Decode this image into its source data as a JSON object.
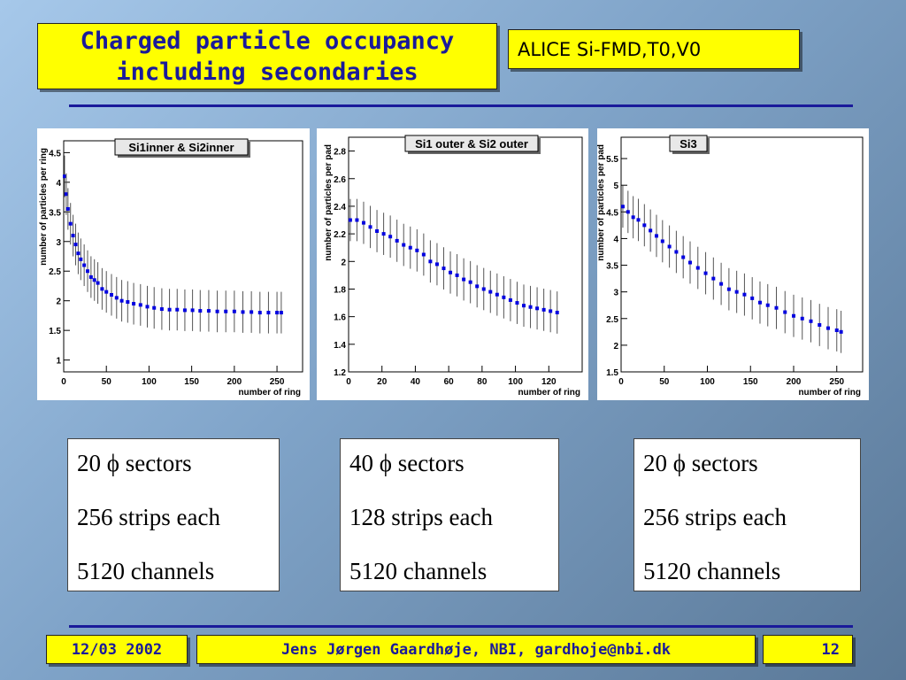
{
  "slide": {
    "title_line1": "Charged particle occupancy",
    "title_line2": "including secondaries",
    "subtitle": "ALICE Si-FMD,T0,V0"
  },
  "info_boxes": [
    {
      "line1": "20 ϕ sectors",
      "line2": "256 strips each",
      "line3": "5120 channels"
    },
    {
      "line1": "40 ϕ sectors",
      "line2": "128 strips each",
      "line3": "5120 channels"
    },
    {
      "line1": "20 ϕ sectors",
      "line2": "256 strips each",
      "line3": "5120 channels"
    }
  ],
  "footer": {
    "date": "12/03 2002",
    "author": "Jens Jørgen Gaardhøje, NBI, gardhoje@nbi.dk",
    "page": "12"
  },
  "colors": {
    "title_text": "#1a1a9a",
    "box_fill": "#ffff00",
    "marker": "#0000e0",
    "error_bar": "#555555"
  },
  "chart_data": [
    {
      "type": "scatter",
      "title": "Si1inner & Si2inner",
      "xlabel": "number of ring",
      "ylabel": "number of particles per ring",
      "xlim": [
        0,
        280
      ],
      "ylim": [
        0.8,
        4.7
      ],
      "xticks": [
        0,
        50,
        100,
        150,
        200,
        250
      ],
      "yticks": [
        1,
        1.5,
        2,
        2.5,
        3,
        3.5,
        4,
        4.5
      ],
      "error_bars": true,
      "series": [
        {
          "x": [
            1,
            3,
            5,
            8,
            11,
            14,
            17,
            20,
            24,
            28,
            32,
            36,
            40,
            45,
            50,
            56,
            62,
            68,
            75,
            82,
            90,
            98,
            106,
            115,
            124,
            133,
            142,
            151,
            160,
            170,
            180,
            190,
            200,
            210,
            220,
            230,
            240,
            250,
            255
          ],
          "y": [
            4.1,
            3.8,
            3.55,
            3.3,
            3.1,
            2.95,
            2.8,
            2.7,
            2.6,
            2.5,
            2.4,
            2.35,
            2.3,
            2.2,
            2.15,
            2.1,
            2.05,
            2.0,
            1.98,
            1.95,
            1.93,
            1.9,
            1.88,
            1.86,
            1.85,
            1.85,
            1.84,
            1.84,
            1.83,
            1.83,
            1.82,
            1.82,
            1.82,
            1.81,
            1.81,
            1.8,
            1.8,
            1.8,
            1.8
          ]
        }
      ]
    },
    {
      "type": "scatter",
      "title": "Si1 outer & Si2 outer",
      "xlabel": "number of ring",
      "ylabel": "number of particles per pad",
      "xlim": [
        0,
        140
      ],
      "ylim": [
        1.2,
        2.9
      ],
      "xticks": [
        0,
        20,
        40,
        60,
        80,
        100,
        120
      ],
      "yticks": [
        1.2,
        1.4,
        1.6,
        1.8,
        2,
        2.2,
        2.4,
        2.6,
        2.8
      ],
      "error_bars": true,
      "series": [
        {
          "x": [
            1,
            5,
            9,
            13,
            17,
            21,
            25,
            29,
            33,
            37,
            41,
            45,
            49,
            53,
            57,
            61,
            65,
            69,
            73,
            77,
            81,
            85,
            89,
            93,
            97,
            101,
            105,
            109,
            113,
            117,
            121,
            125
          ],
          "y": [
            2.3,
            2.3,
            2.28,
            2.25,
            2.22,
            2.2,
            2.18,
            2.15,
            2.12,
            2.1,
            2.08,
            2.05,
            2.0,
            1.98,
            1.95,
            1.92,
            1.9,
            1.87,
            1.85,
            1.82,
            1.8,
            1.78,
            1.76,
            1.74,
            1.72,
            1.7,
            1.68,
            1.67,
            1.66,
            1.65,
            1.64,
            1.63
          ]
        }
      ]
    },
    {
      "type": "scatter",
      "title": "Si3",
      "xlabel": "number of ring",
      "ylabel": "number of particles per pad",
      "xlim": [
        0,
        280
      ],
      "ylim": [
        1.5,
        5.9
      ],
      "xticks": [
        0,
        50,
        100,
        150,
        200,
        250
      ],
      "yticks": [
        1.5,
        2,
        2.5,
        3,
        3.5,
        4,
        4.5,
        5,
        5.5
      ],
      "error_bars": true,
      "series": [
        {
          "x": [
            2,
            8,
            14,
            20,
            27,
            34,
            41,
            48,
            56,
            64,
            72,
            80,
            89,
            98,
            107,
            116,
            125,
            134,
            143,
            152,
            161,
            170,
            180,
            190,
            200,
            210,
            220,
            230,
            240,
            250,
            255
          ],
          "y": [
            4.6,
            4.5,
            4.4,
            4.35,
            4.25,
            4.15,
            4.05,
            3.95,
            3.85,
            3.75,
            3.65,
            3.55,
            3.45,
            3.35,
            3.25,
            3.15,
            3.05,
            3.0,
            2.95,
            2.88,
            2.8,
            2.75,
            2.7,
            2.62,
            2.55,
            2.5,
            2.45,
            2.38,
            2.32,
            2.28,
            2.25
          ]
        }
      ]
    }
  ]
}
